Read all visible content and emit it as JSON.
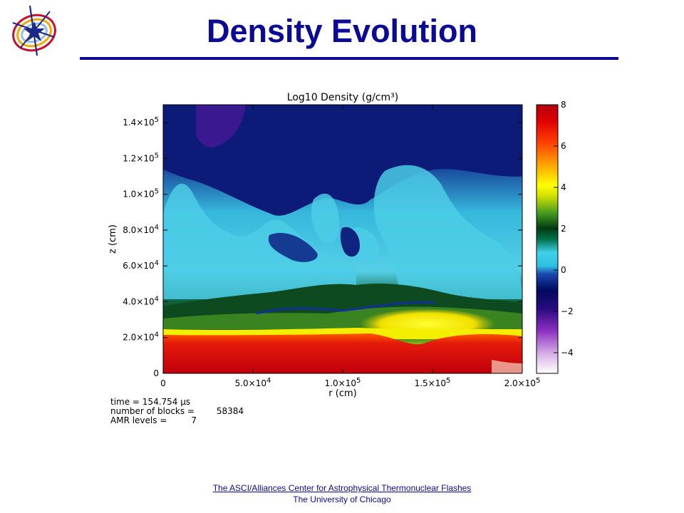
{
  "slide": {
    "title": "Density Evolution",
    "footer_link": "The ASCI/Alliances Center for Astrophysical Thermonuclear Flashes",
    "footer_sub": "The University of Chicago",
    "title_color": "#0a0a96"
  },
  "chart_data": {
    "type": "heatmap",
    "title": "Log10 Density (g/cm³)",
    "xlabel": "r (cm)",
    "ylabel": "z (cm)",
    "xlim": [
      0,
      200000
    ],
    "ylim": [
      0,
      150000
    ],
    "x_ticks": [
      {
        "value": 0,
        "mant": "0",
        "exp": ""
      },
      {
        "value": 50000,
        "mant": "5.0×10",
        "exp": "4"
      },
      {
        "value": 100000,
        "mant": "1.0×10",
        "exp": "5"
      },
      {
        "value": 150000,
        "mant": "1.5×10",
        "exp": "5"
      },
      {
        "value": 200000,
        "mant": "2.0×10",
        "exp": "5"
      }
    ],
    "y_ticks": [
      {
        "value": 0,
        "mant": "0",
        "exp": ""
      },
      {
        "value": 20000,
        "mant": "2.0×10",
        "exp": "4"
      },
      {
        "value": 40000,
        "mant": "4.0×10",
        "exp": "4"
      },
      {
        "value": 60000,
        "mant": "6.0×10",
        "exp": "4"
      },
      {
        "value": 80000,
        "mant": "8.0×10",
        "exp": "4"
      },
      {
        "value": 100000,
        "mant": "1.0×10",
        "exp": "5"
      },
      {
        "value": 120000,
        "mant": "1.2×10",
        "exp": "5"
      },
      {
        "value": 140000,
        "mant": "1.4×10",
        "exp": "5"
      }
    ],
    "colorbar": {
      "range": [
        -5,
        8
      ],
      "ticks": [
        8,
        6,
        4,
        2,
        0,
        -2,
        -4
      ],
      "tick_labels": [
        "8",
        "6",
        "4",
        "2",
        "0",
        "−2",
        "−4"
      ]
    },
    "info_lines": [
      {
        "label": "time = 154.754 μs",
        "value": ""
      },
      {
        "label": "number of blocks =",
        "value": "58384"
      },
      {
        "label": "AMR levels =",
        "value": "7"
      }
    ],
    "grid": false
  }
}
